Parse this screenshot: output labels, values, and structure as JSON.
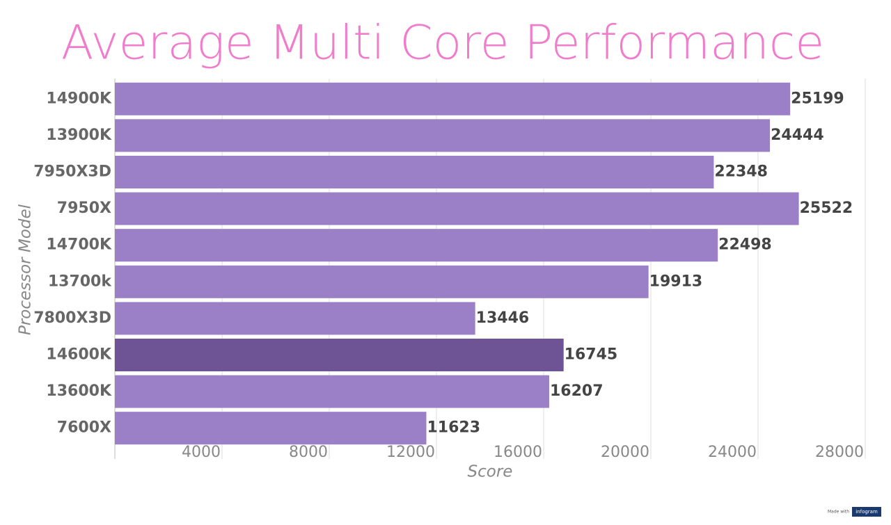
{
  "chart_data": {
    "type": "bar",
    "orientation": "horizontal",
    "title": "Average Multi Core Performance",
    "x_label": "Score",
    "y_label": "Processor Model",
    "categories": [
      "14900K",
      "13900K",
      "7950X3D",
      "7950X",
      "14700K",
      "13700k",
      "7800X3D",
      "14600K",
      "13600K",
      "7600X"
    ],
    "values": [
      25199,
      24444,
      22348,
      25522,
      22498,
      19913,
      13446,
      16745,
      16207,
      11623
    ],
    "colors": [
      "#9b80c8",
      "#9b80c8",
      "#9b80c8",
      "#9b80c8",
      "#9b80c8",
      "#9b80c8",
      "#9b80c8",
      "#6e5494",
      "#9b80c8",
      "#9b80c8"
    ],
    "xlim": [
      0,
      28000
    ],
    "xticks": [
      4000,
      8000,
      12000,
      16000,
      20000,
      24000,
      28000
    ],
    "grid": true,
    "footer": {
      "made_with": "Made with",
      "brand": "infogram"
    }
  }
}
